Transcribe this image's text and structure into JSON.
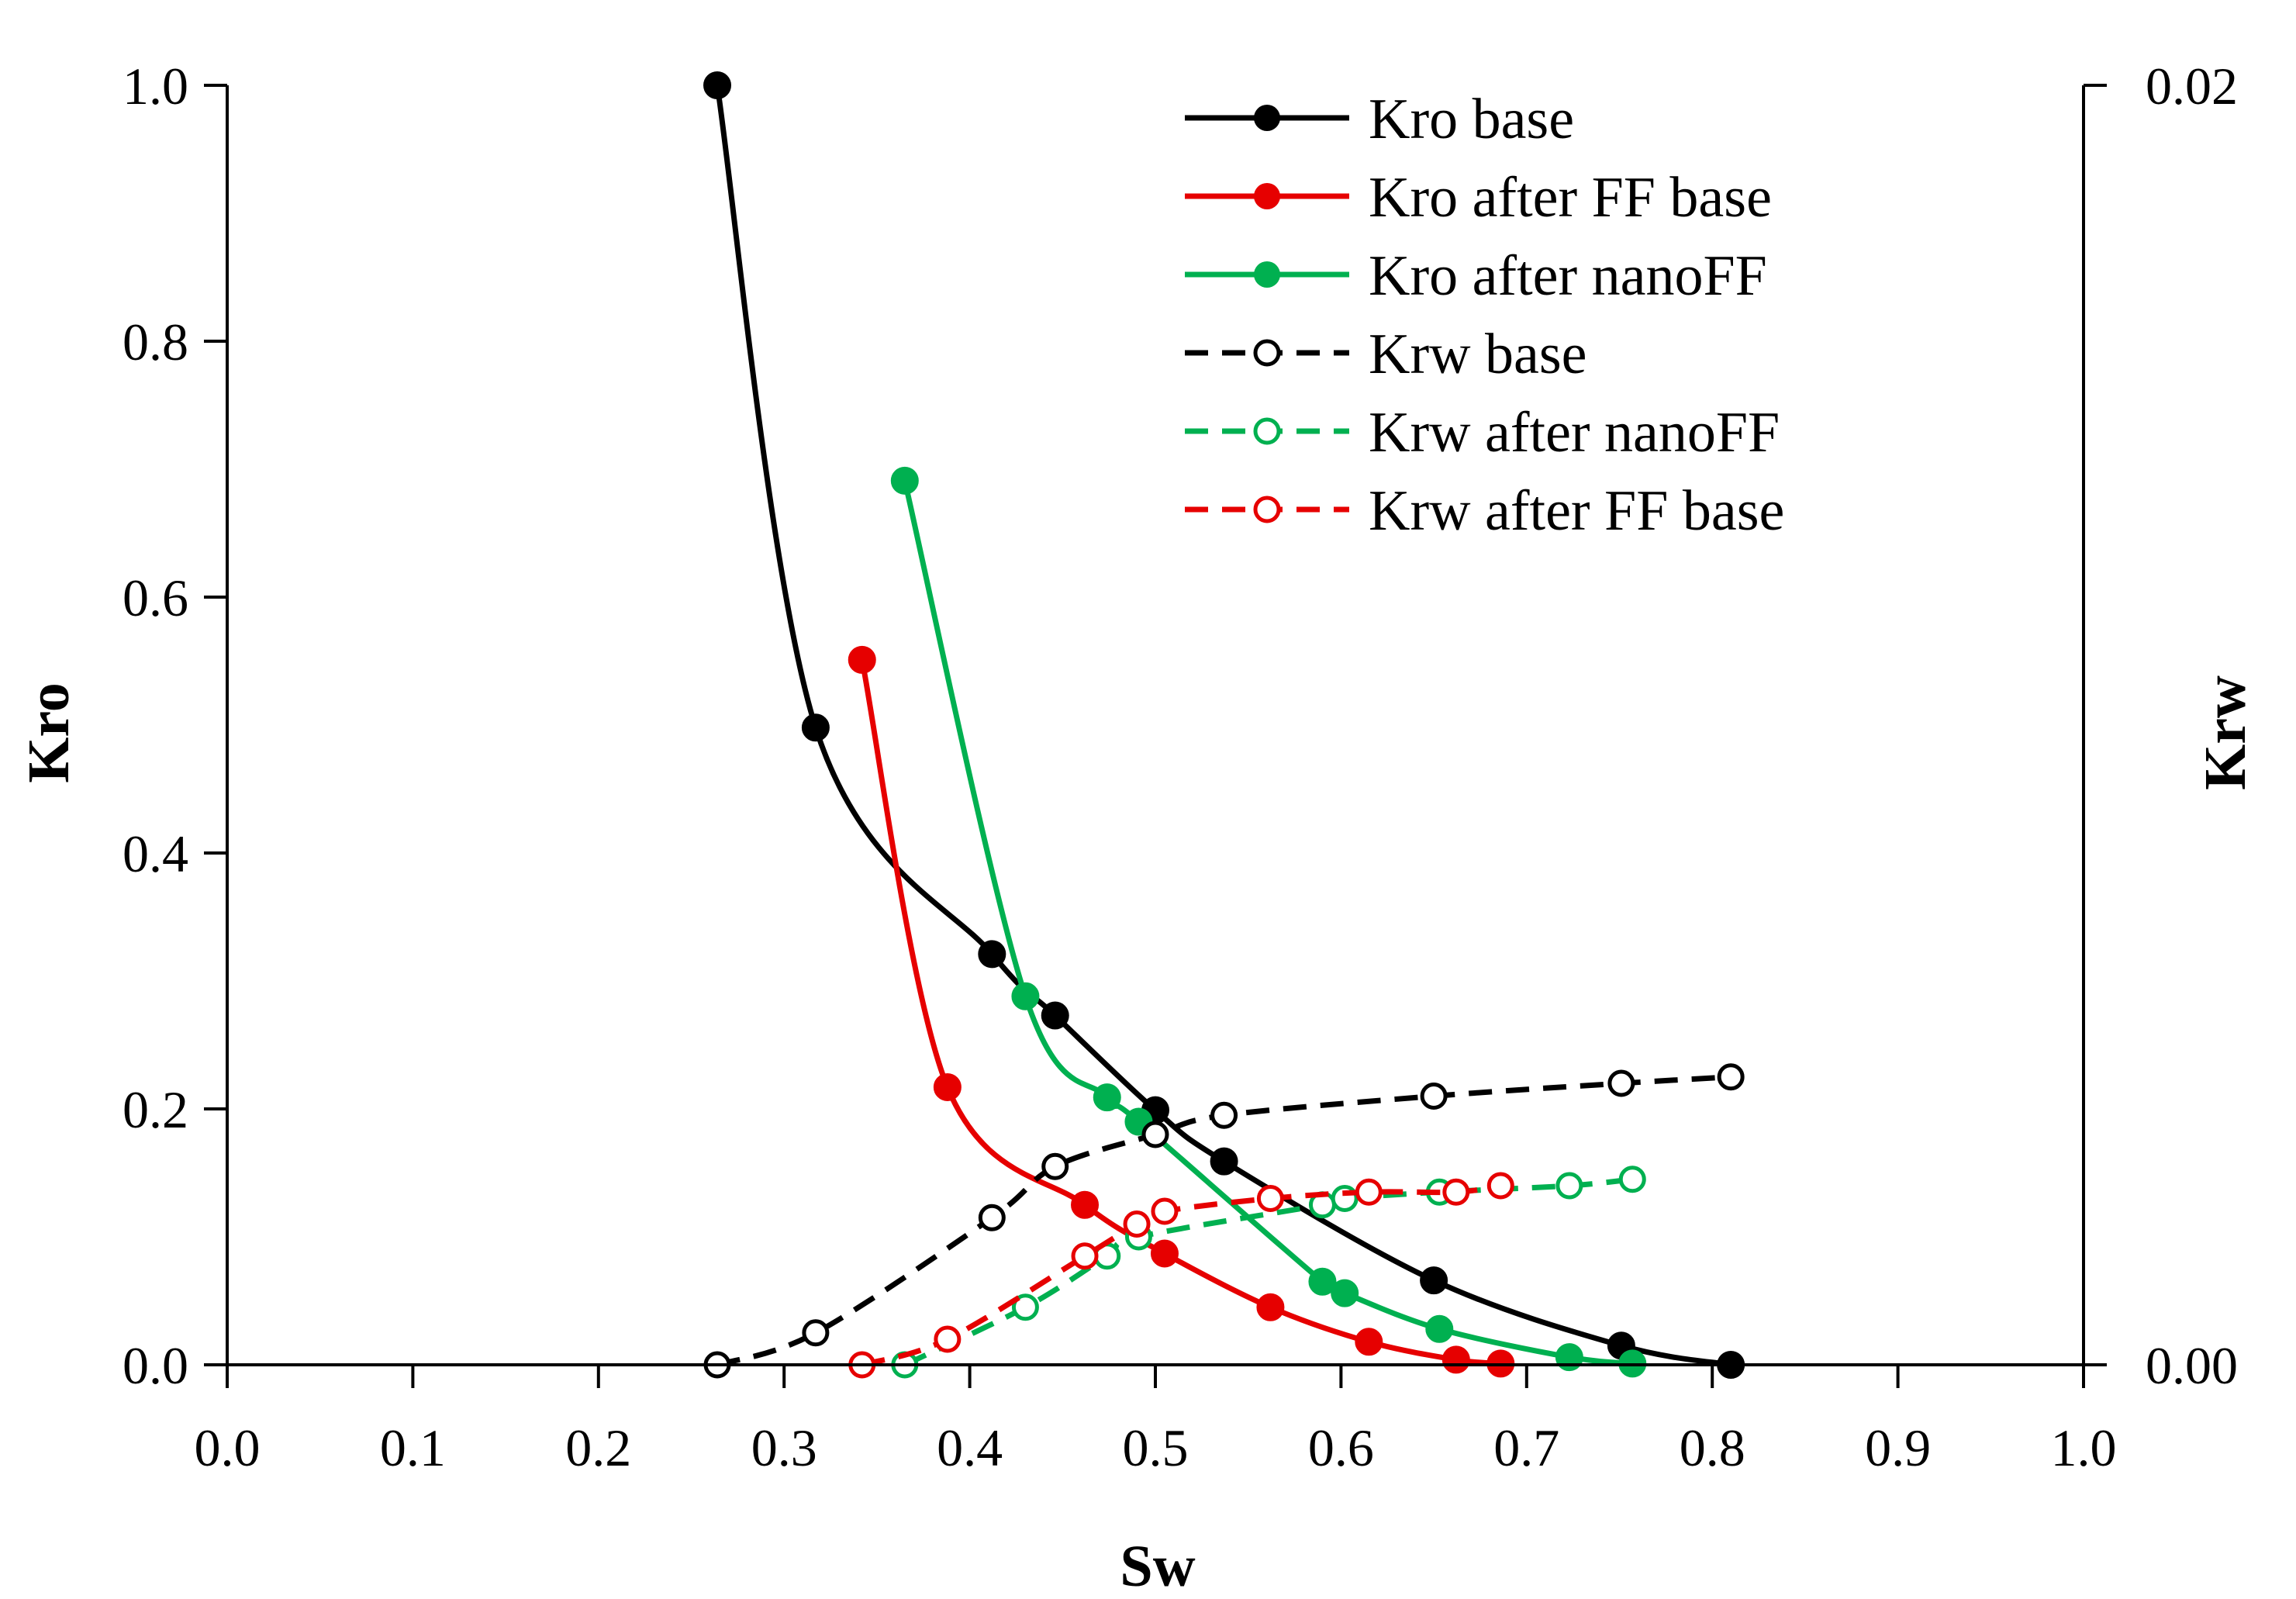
{
  "chart_data": {
    "type": "line",
    "title": "",
    "xlabel": "Sw",
    "ylabel": "Kro",
    "y2label": "Krw",
    "xlim": [
      0,
      1
    ],
    "ylim": [
      0,
      1
    ],
    "y2lim": [
      0,
      0.02
    ],
    "x_ticks": [
      "0.0",
      "0.1",
      "0.2",
      "0.3",
      "0.4",
      "0.5",
      "0.6",
      "0.7",
      "0.8",
      "0.9",
      "1.0"
    ],
    "y_ticks": [
      "0.0",
      "0.2",
      "0.4",
      "0.6",
      "0.8",
      "1.0"
    ],
    "y2_ticks": [
      "0.00",
      "0.02"
    ],
    "legend_position": "top-right",
    "series": [
      {
        "name": "Kro base",
        "axis": "left",
        "color": "#000000",
        "dashed": false,
        "filled": true,
        "x": [
          0.264,
          0.317,
          0.412,
          0.446,
          0.5,
          0.537,
          0.65,
          0.751,
          0.81
        ],
        "y": [
          1.0,
          0.498,
          0.321,
          0.273,
          0.199,
          0.159,
          0.066,
          0.015,
          0.0
        ]
      },
      {
        "name": "Kro after FF base",
        "axis": "left",
        "color": "#e60000",
        "dashed": false,
        "filled": true,
        "x": [
          0.342,
          0.388,
          0.462,
          0.505,
          0.562,
          0.615,
          0.662,
          0.686
        ],
        "y": [
          0.551,
          0.217,
          0.125,
          0.087,
          0.045,
          0.018,
          0.004,
          0.001
        ]
      },
      {
        "name": "Kro after nanoFF",
        "axis": "left",
        "color": "#00b050",
        "dashed": false,
        "filled": true,
        "x": [
          0.365,
          0.43,
          0.474,
          0.491,
          0.59,
          0.602,
          0.653,
          0.723,
          0.757
        ],
        "y": [
          0.691,
          0.288,
          0.209,
          0.19,
          0.065,
          0.056,
          0.028,
          0.006,
          0.001
        ]
      },
      {
        "name": "Krw base",
        "axis": "right",
        "color": "#000000",
        "dashed": true,
        "filled": false,
        "x": [
          0.264,
          0.317,
          0.412,
          0.446,
          0.5,
          0.537,
          0.65,
          0.751,
          0.81
        ],
        "y": [
          0.0,
          0.0005,
          0.0023,
          0.0031,
          0.0036,
          0.0039,
          0.0042,
          0.0044,
          0.0045
        ]
      },
      {
        "name": "Krw after nanoFF",
        "axis": "right",
        "color": "#00b050",
        "dashed": true,
        "filled": false,
        "x": [
          0.365,
          0.43,
          0.474,
          0.491,
          0.59,
          0.602,
          0.653,
          0.723,
          0.757
        ],
        "y": [
          0.0,
          0.0009,
          0.0017,
          0.002,
          0.0025,
          0.0026,
          0.0027,
          0.0028,
          0.0029
        ]
      },
      {
        "name": "Krw after FF base",
        "axis": "right",
        "color": "#e60000",
        "dashed": true,
        "filled": false,
        "x": [
          0.342,
          0.388,
          0.462,
          0.49,
          0.505,
          0.562,
          0.615,
          0.662,
          0.686
        ],
        "y": [
          0.0,
          0.0004,
          0.0017,
          0.0022,
          0.0024,
          0.0026,
          0.0027,
          0.0027,
          0.0028
        ]
      }
    ]
  }
}
